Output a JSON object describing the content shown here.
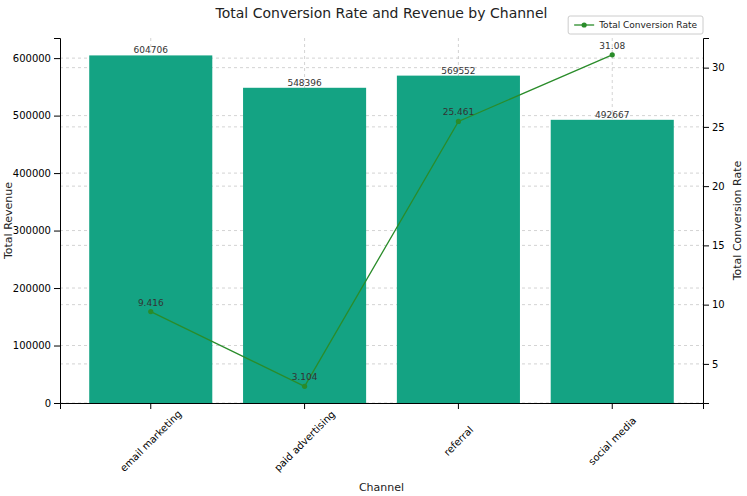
{
  "chart_data": {
    "type": "bar",
    "title": "Total Conversion Rate and Revenue by Channel",
    "x_label": "Channel",
    "y_label": "Total Revenue",
    "y2_label": "Total Conversion Rate",
    "categories": [
      "email marketing",
      "paid advertising",
      "referral",
      "social media"
    ],
    "series": [
      {
        "type": "bar",
        "color": "#14a383",
        "values": [
          604706,
          548396,
          569552,
          492667
        ]
      },
      {
        "name": "Total Conversion Rate",
        "type": "line",
        "axis": "y2",
        "color": "#2a8c2a",
        "marker": "circle",
        "values": [
          9.416,
          3.104,
          25.461,
          31.08
        ]
      }
    ],
    "ylim": [
      0,
      635000
    ],
    "yticks": [
      0,
      100000,
      200000,
      300000,
      400000,
      500000,
      600000
    ],
    "y2lim": [
      1.7,
      32.5
    ],
    "y2ticks": [
      5,
      10,
      15,
      20,
      25,
      30
    ],
    "grid": true,
    "legend": "upper right",
    "data_labels": true
  }
}
